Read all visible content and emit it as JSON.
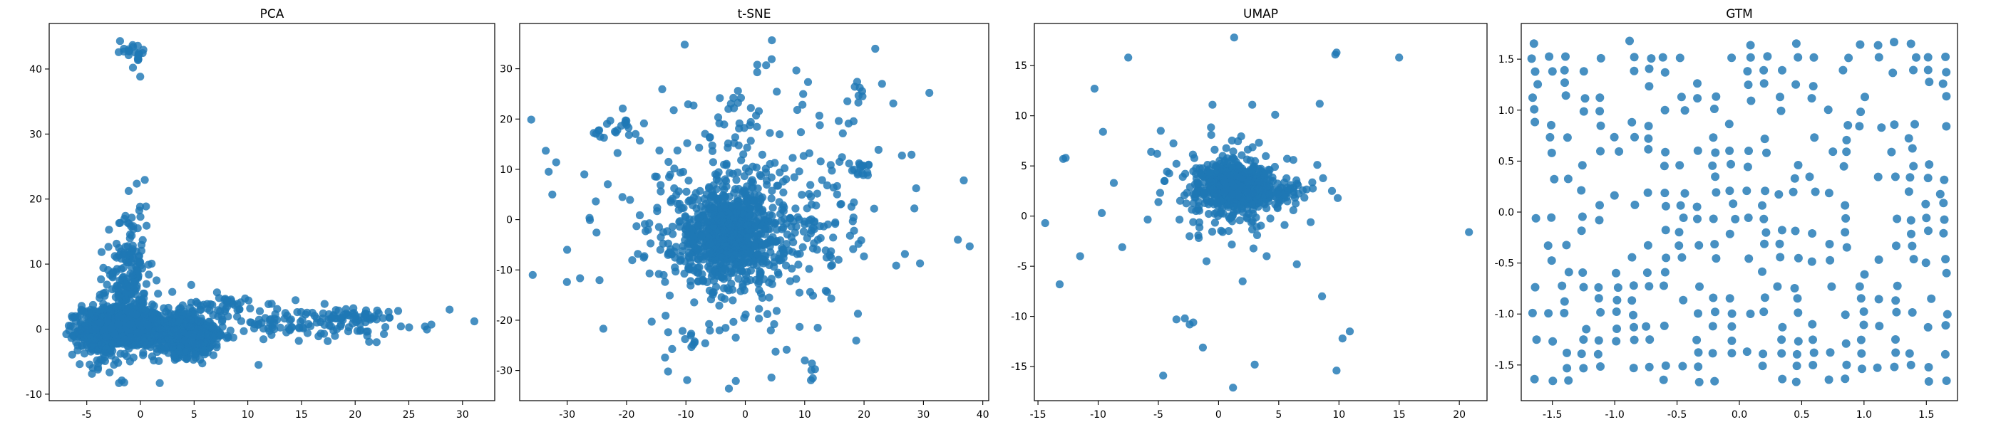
{
  "chart_data": [
    {
      "type": "scatter",
      "title": "PCA",
      "xlim": [
        -8.5,
        33
      ],
      "ylim": [
        -11,
        47
      ],
      "xticks": [
        "-5",
        "0",
        "5",
        "10",
        "15",
        "20",
        "25",
        "30"
      ],
      "yticks": [
        "-10",
        "0",
        "10",
        "20",
        "30",
        "40"
      ],
      "color": "#1f77b4",
      "clusters": [
        {
          "cx": -1.5,
          "cy": 0.3,
          "sx": 1.9,
          "sy": 1.5,
          "n": 900
        },
        {
          "cx": 4.5,
          "cy": -1.0,
          "sx": 1.6,
          "sy": 1.6,
          "n": 450
        },
        {
          "cx": -4.0,
          "cy": -1.0,
          "sx": 1.2,
          "sy": 2.5,
          "n": 150
        },
        {
          "cx": -0.8,
          "cy": 8.0,
          "sx": 0.8,
          "sy": 6.0,
          "n": 140
        },
        {
          "cx": -2.0,
          "cy": 7.0,
          "sx": 1.0,
          "sy": 3.5,
          "n": 60
        },
        {
          "cx": 14.0,
          "cy": 1.0,
          "sx": 5.0,
          "sy": 1.2,
          "n": 120
        },
        {
          "cx": 20.0,
          "cy": 2.0,
          "sx": 2.0,
          "sy": 0.8,
          "n": 40
        },
        {
          "cx": -0.8,
          "cy": 42.0,
          "sx": 0.6,
          "sy": 1.2,
          "n": 18
        },
        {
          "cx": 7.0,
          "cy": 3.5,
          "sx": 2.0,
          "sy": 1.2,
          "n": 50
        }
      ],
      "points": [
        [
          -1.9,
          44.3
        ],
        [
          -0.7,
          43.4
        ],
        [
          -0.2,
          42.1
        ],
        [
          -0.7,
          40.2
        ],
        [
          26.5,
          0.4
        ],
        [
          27.1,
          0.7
        ],
        [
          28.8,
          3.0
        ],
        [
          31.1,
          1.2
        ],
        [
          -2.0,
          -8.3
        ],
        [
          1.8,
          -8.3
        ],
        [
          11.0,
          -5.5
        ],
        [
          22.0,
          -2.0
        ],
        [
          24.0,
          2.8
        ],
        [
          -6.5,
          0.5
        ]
      ]
    },
    {
      "type": "scatter",
      "title": "t-SNE",
      "xlim": [
        -38,
        41
      ],
      "ylim": [
        -36,
        39
      ],
      "xticks": [
        "-30",
        "-20",
        "-10",
        "0",
        "10",
        "20",
        "30",
        "40"
      ],
      "yticks": [
        "-30",
        "-20",
        "-10",
        "0",
        "10",
        "20",
        "30"
      ],
      "color": "#1f77b4",
      "clusters": [
        {
          "cx": -2.5,
          "cy": -3.0,
          "sx": 4.5,
          "sy": 4.5,
          "n": 700
        },
        {
          "cx": 0.0,
          "cy": 0.0,
          "sx": 12.0,
          "sy": 12.0,
          "n": 420
        },
        {
          "cx": -22.0,
          "cy": 17.5,
          "sx": 2.0,
          "sy": 1.2,
          "n": 18
        },
        {
          "cx": 20.0,
          "cy": 10.0,
          "sx": 1.0,
          "sy": 1.0,
          "n": 15
        },
        {
          "cx": 19.0,
          "cy": 25.0,
          "sx": 1.0,
          "sy": 1.0,
          "n": 8
        },
        {
          "cx": -9.0,
          "cy": -24.0,
          "sx": 0.8,
          "sy": 0.8,
          "n": 8
        },
        {
          "cx": 11.5,
          "cy": -29.5,
          "sx": 0.5,
          "sy": 1.2,
          "n": 6
        }
      ],
      "points": [
        [
          -10.2,
          34.8
        ],
        [
          -35.8,
          -11.0
        ],
        [
          -33.6,
          13.7
        ],
        [
          37.8,
          -5.3
        ],
        [
          35.8,
          -4.0
        ],
        [
          31.0,
          25.2
        ],
        [
          28.0,
          12.9
        ],
        [
          -1.6,
          -32.1
        ],
        [
          -13.0,
          -30.2
        ],
        [
          2.0,
          29.3
        ],
        [
          36.8,
          7.8
        ],
        [
          -30.0,
          -6.0
        ],
        [
          -32.5,
          5.0
        ]
      ]
    },
    {
      "type": "scatter",
      "title": "UMAP",
      "xlim": [
        -15.3,
        22.3
      ],
      "ylim": [
        -18.4,
        19.2
      ],
      "xticks": [
        "-15",
        "-10",
        "-5",
        "0",
        "5",
        "10",
        "15",
        "20"
      ],
      "yticks": [
        "-15",
        "-10",
        "-5",
        "0",
        "5",
        "10",
        "15"
      ],
      "color": "#1f77b4",
      "clusters": [
        {
          "cx": 1.5,
          "cy": 3.0,
          "sx": 1.3,
          "sy": 1.0,
          "n": 650
        },
        {
          "cx": 1.0,
          "cy": 2.5,
          "sx": 2.6,
          "sy": 2.3,
          "n": 180
        },
        {
          "cx": 5.5,
          "cy": 2.3,
          "sx": 1.2,
          "sy": 0.6,
          "n": 40
        }
      ],
      "points": [
        [
          1.3,
          17.8
        ],
        [
          -7.5,
          15.8
        ],
        [
          9.7,
          16.1
        ],
        [
          9.8,
          16.3
        ],
        [
          15.0,
          15.8
        ],
        [
          -10.3,
          12.7
        ],
        [
          -12.7,
          5.8
        ],
        [
          -12.9,
          5.7
        ],
        [
          -5.6,
          6.4
        ],
        [
          -5.1,
          6.2
        ],
        [
          -9.6,
          8.4
        ],
        [
          -4.8,
          8.5
        ],
        [
          -8.7,
          3.3
        ],
        [
          -14.4,
          -0.7
        ],
        [
          -13.2,
          -6.8
        ],
        [
          -11.5,
          -4.0
        ],
        [
          -9.7,
          0.3
        ],
        [
          -8.0,
          -3.1
        ],
        [
          -3.5,
          -10.3
        ],
        [
          -2.8,
          -10.2
        ],
        [
          -2.4,
          -10.8
        ],
        [
          -2.1,
          -10.6
        ],
        [
          -1.3,
          -13.1
        ],
        [
          1.2,
          -17.1
        ],
        [
          3.0,
          -14.8
        ],
        [
          -4.6,
          -15.9
        ],
        [
          9.8,
          -15.4
        ],
        [
          10.3,
          -12.2
        ],
        [
          10.9,
          -11.5
        ],
        [
          8.6,
          -8.0
        ],
        [
          9.9,
          1.8
        ],
        [
          8.2,
          5.1
        ],
        [
          8.4,
          11.2
        ],
        [
          2.8,
          11.1
        ],
        [
          4.7,
          10.1
        ],
        [
          -0.5,
          11.1
        ],
        [
          20.8,
          -1.6
        ],
        [
          2.0,
          -6.5
        ],
        [
          4.0,
          -4.0
        ],
        [
          6.5,
          -4.8
        ],
        [
          -1.0,
          -4.5
        ],
        [
          -4.5,
          3.5
        ]
      ]
    },
    {
      "type": "scatter",
      "title": "GTM",
      "xlim": [
        -1.75,
        1.75
      ],
      "ylim": [
        -1.85,
        1.85
      ],
      "xticks": [
        "-1.5",
        "-1.0",
        "-0.5",
        "0.0",
        "0.5",
        "1.0",
        "1.5"
      ],
      "yticks": [
        "-1.5",
        "-1.0",
        "-0.5",
        "0.0",
        "0.5",
        "1.0",
        "1.5"
      ],
      "color": "#1f77b4",
      "grid_nodes": 26,
      "grid_range": [
        -1.65,
        1.65
      ],
      "fill_fraction": 0.5
    }
  ]
}
